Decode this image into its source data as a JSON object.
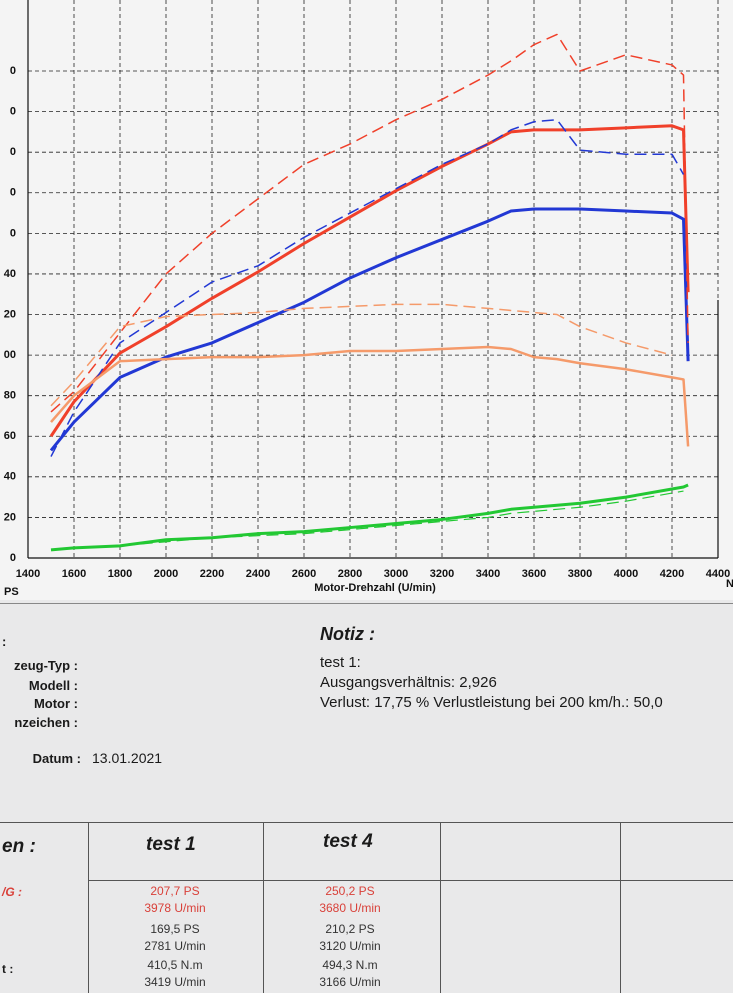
{
  "chart_data": {
    "type": "line",
    "x_label": "Motor-Drehzahl (U/min)",
    "y_unit": "PS",
    "right_unit": "N",
    "x": [
      1500,
      1600,
      1800,
      2000,
      2200,
      2400,
      2600,
      2800,
      3000,
      3200,
      3400,
      3500,
      3600,
      3700,
      3800,
      4000,
      4200,
      4250,
      4270
    ],
    "series": [
      {
        "color": "#f0402a",
        "dash": false,
        "width": 3,
        "values": [
          60,
          77,
          101,
          114,
          128,
          141,
          155,
          168,
          181,
          193,
          204,
          210,
          211,
          211,
          211,
          212,
          213,
          211,
          131
        ]
      },
      {
        "color": "#2238d4",
        "dash": false,
        "width": 3,
        "values": [
          53,
          67,
          89,
          99,
          106,
          116,
          126,
          138,
          148,
          157,
          166,
          171,
          172,
          172,
          172,
          171,
          170,
          167,
          97
        ]
      },
      {
        "color": "#f0402a",
        "dash": true,
        "width": 1.5,
        "values": [
          72,
          82,
          111,
          140,
          160,
          177,
          194,
          204,
          216,
          226,
          238,
          245,
          253,
          258,
          240,
          248,
          243,
          238,
          106
        ]
      },
      {
        "color": "#2238d4",
        "dash": true,
        "width": 1.5,
        "values": [
          50,
          72,
          106,
          121,
          136,
          144,
          158,
          170,
          182,
          194,
          204,
          211,
          215,
          216,
          201,
          199,
          199,
          189,
          null
        ]
      },
      {
        "color": "#f59a6a",
        "dash": false,
        "width": 2.5,
        "values": [
          67,
          80,
          97,
          98,
          99,
          99,
          100,
          102,
          102,
          103,
          104,
          103,
          99,
          98,
          96,
          93,
          89,
          88,
          55
        ]
      },
      {
        "color": "#f59a6a",
        "dash": true,
        "width": 1.5,
        "values": [
          75,
          87,
          114,
          119,
          120,
          121,
          123,
          124,
          125,
          125,
          123,
          122,
          121,
          120,
          114,
          106,
          100,
          null,
          null
        ]
      },
      {
        "color": "#22c833",
        "dash": false,
        "width": 3,
        "values": [
          4,
          5,
          6,
          9,
          10,
          12,
          13,
          15,
          17,
          19,
          22,
          24,
          25,
          26,
          27,
          30,
          34,
          35,
          36
        ]
      },
      {
        "color": "#22c833",
        "dash": true,
        "width": 1.2,
        "values": [
          4,
          5,
          6,
          8,
          10,
          11,
          12,
          14,
          16,
          18,
          20,
          22,
          23,
          24,
          25,
          28,
          32,
          33,
          null
        ]
      }
    ],
    "xlim": [
      1400,
      4400
    ],
    "xticks": [
      1400,
      1600,
      1800,
      2000,
      2200,
      2400,
      2600,
      2800,
      3000,
      3200,
      3400,
      3600,
      3800,
      4000,
      4200,
      4400
    ],
    "ylim": [
      0,
      275
    ],
    "yticks": [
      0,
      20,
      40,
      60,
      80,
      {
        "value": 100,
        "label": "00"
      },
      {
        "value": 120,
        "label": "20"
      },
      {
        "value": 140,
        "label": "40"
      },
      {
        "value": 160,
        "label": "0"
      },
      {
        "value": 180,
        "label": "0"
      },
      {
        "value": 200,
        "label": "0"
      },
      {
        "value": 220,
        "label": "0"
      },
      {
        "value": 240,
        "label": "0"
      }
    ],
    "grid": true
  },
  "info": {
    "header": ":",
    "fields": [
      "zeug-Typ :",
      "Modell :",
      "Motor :",
      "nzeichen :"
    ],
    "date_label": "Datum :",
    "date": "13.01.2021"
  },
  "notes": {
    "title": "Notiz :",
    "lines": [
      "test 1:",
      "Ausgangsverhältnis: 2,926",
      "Verlust: 17,75 %  Verlustleistung bei 200 km/h.: 50,0"
    ]
  },
  "table": {
    "header": [
      "en :",
      "test 1",
      "test 4"
    ],
    "rows": [
      {
        "label": "/G :",
        "test1": [
          "207,7 PS",
          "3978 U/min"
        ],
        "test4": [
          "250,2 PS",
          "3680 U/min"
        ]
      },
      {
        "label": "",
        "test1": [
          "169,5 PS",
          "2781 U/min"
        ],
        "test4": [
          "210,2 PS",
          "3120 U/min"
        ]
      },
      {
        "label": "t :",
        "test1": [
          "410,5 N.m",
          "3419 U/min"
        ],
        "test4": [
          "494,3 N.m",
          "3166 U/min"
        ]
      }
    ]
  }
}
